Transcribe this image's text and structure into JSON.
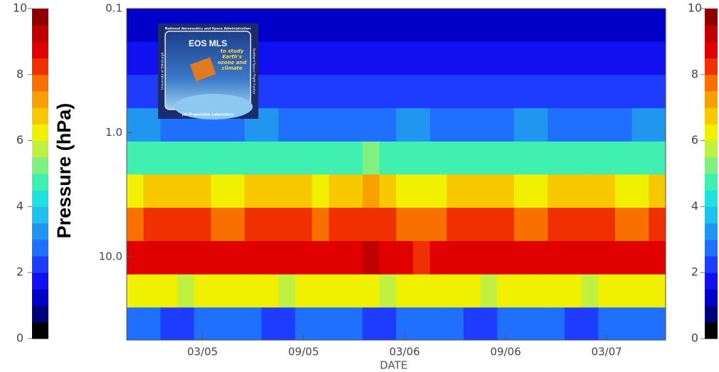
{
  "chart_data": {
    "type": "heatmap",
    "ylabel": "Pressure (hPa)",
    "xlabel": "DATE",
    "yscale": "log",
    "ylim": [
      0.1,
      47
    ],
    "yticks": [
      0.1,
      {
        "value": 1,
        "label": "1.0"
      },
      {
        "value": 10,
        "label": "10.0"
      }
    ],
    "categories": [
      null,
      null,
      null,
      null,
      "03/05",
      null,
      null,
      null,
      null,
      null,
      "09/05",
      null,
      null,
      null,
      null,
      null,
      "03/06",
      null,
      null,
      null,
      null,
      null,
      "09/06",
      null,
      null,
      null,
      null,
      null,
      "03/07",
      null,
      null,
      null
    ],
    "y_edges": [
      0.1,
      0.185,
      0.343,
      0.636,
      1.18,
      2.18,
      4.04,
      7.49,
      13.9,
      25.7,
      47
    ],
    "z": [
      [
        1.3,
        1.3,
        1.2,
        1.2,
        1.1,
        1.1,
        1.2,
        1.3,
        1.3,
        1.2,
        1.2,
        1.1,
        1.0,
        1.0,
        1.1,
        1.2,
        1.3,
        1.3,
        1.2,
        1.2,
        1.1,
        1.1,
        1.2,
        1.3,
        1.3,
        1.2,
        1.2,
        1.1,
        1.1,
        1.2,
        1.3,
        1.3
      ],
      [
        1.8,
        1.8,
        1.7,
        1.7,
        1.6,
        1.6,
        1.7,
        1.8,
        1.8,
        1.7,
        1.7,
        1.6,
        1.5,
        1.5,
        1.6,
        1.7,
        1.8,
        1.8,
        1.7,
        1.7,
        1.6,
        1.6,
        1.7,
        1.8,
        1.8,
        1.7,
        1.7,
        1.6,
        1.6,
        1.7,
        1.8,
        1.8
      ],
      [
        2.3,
        2.3,
        2.2,
        2.2,
        2.1,
        2.1,
        2.2,
        2.3,
        2.3,
        2.2,
        2.2,
        2.1,
        2.0,
        2.0,
        2.1,
        2.2,
        2.3,
        2.3,
        2.2,
        2.2,
        2.1,
        2.1,
        2.2,
        2.3,
        2.3,
        2.2,
        2.2,
        2.1,
        2.1,
        2.2,
        2.3,
        2.3
      ],
      [
        3.0,
        3.0,
        2.9,
        2.9,
        2.8,
        2.8,
        2.9,
        3.0,
        3.0,
        2.9,
        2.9,
        2.8,
        2.7,
        2.7,
        2.8,
        2.9,
        3.0,
        3.0,
        2.9,
        2.9,
        2.8,
        2.8,
        2.9,
        3.0,
        3.0,
        2.9,
        2.9,
        2.8,
        2.8,
        2.9,
        3.0,
        3.0
      ],
      [
        4.6,
        4.7,
        4.8,
        4.8,
        4.7,
        4.6,
        4.6,
        4.8,
        4.9,
        4.8,
        4.7,
        4.6,
        4.7,
        4.9,
        5.0,
        4.8,
        4.6,
        4.5,
        4.6,
        4.7,
        4.8,
        4.8,
        4.7,
        4.6,
        4.6,
        4.8,
        4.9,
        4.8,
        4.7,
        4.6,
        4.6,
        4.7
      ],
      [
        6.4,
        6.5,
        6.6,
        6.6,
        6.5,
        6.4,
        6.4,
        6.6,
        6.8,
        6.7,
        6.5,
        6.4,
        6.6,
        6.8,
        7.0,
        6.7,
        6.4,
        6.3,
        6.4,
        6.5,
        6.6,
        6.6,
        6.5,
        6.4,
        6.4,
        6.6,
        6.8,
        6.7,
        6.5,
        6.4,
        6.4,
        6.5
      ],
      [
        7.9,
        8.0,
        8.1,
        8.2,
        8.1,
        7.9,
        7.9,
        8.1,
        8.3,
        8.2,
        8.0,
        7.9,
        8.1,
        8.3,
        8.4,
        8.2,
        7.9,
        7.8,
        7.9,
        8.0,
        8.2,
        8.2,
        8.1,
        7.9,
        7.9,
        8.1,
        8.3,
        8.2,
        8.0,
        7.9,
        7.9,
        8.0
      ],
      [
        8.5,
        8.6,
        8.7,
        8.8,
        8.7,
        8.5,
        8.5,
        8.7,
        8.9,
        8.8,
        8.6,
        8.5,
        8.7,
        8.9,
        9.0,
        8.8,
        8.5,
        8.4,
        8.5,
        8.6,
        8.8,
        8.8,
        8.7,
        8.5,
        8.5,
        8.7,
        8.9,
        8.8,
        8.6,
        8.5,
        8.5,
        8.6
      ],
      [
        6.2,
        6.1,
        6.0,
        5.9,
        6.0,
        6.1,
        6.2,
        6.1,
        6.0,
        5.9,
        6.0,
        6.1,
        6.2,
        6.1,
        6.0,
        5.9,
        6.0,
        6.1,
        6.2,
        6.1,
        6.0,
        5.9,
        6.0,
        6.1,
        6.2,
        6.1,
        6.0,
        5.9,
        6.0,
        6.1,
        6.2,
        6.1
      ],
      [
        2.6,
        2.5,
        2.4,
        2.4,
        2.5,
        2.6,
        2.6,
        2.5,
        2.4,
        2.4,
        2.5,
        2.6,
        2.6,
        2.5,
        2.4,
        2.4,
        2.5,
        2.6,
        2.6,
        2.5,
        2.4,
        2.4,
        2.5,
        2.6,
        2.6,
        2.5,
        2.4,
        2.4,
        2.5,
        2.6,
        2.6,
        2.5
      ]
    ],
    "colorbar": {
      "lim": [
        0,
        10
      ],
      "ticks": [
        0,
        2,
        4,
        6,
        8,
        10
      ],
      "colors": [
        "#000000",
        "#00007a",
        "#0000c8",
        "#1010f0",
        "#1e3cff",
        "#2070ff",
        "#2096f0",
        "#20c0f0",
        "#20e0e0",
        "#40f0b0",
        "#80f080",
        "#c0f040",
        "#f0f000",
        "#f8c800",
        "#f8a000",
        "#f87000",
        "#f03000",
        "#e00000",
        "#c00000",
        "#900000"
      ]
    }
  },
  "logo": {
    "agency": "National Aeronautics and Space Administration",
    "title": "EOS MLS",
    "tagline": "to study Earth's ozone and climate",
    "left": "University of Edinburgh",
    "right": "Goddard Space Flight Center",
    "bottom": "Jet Propulsion Laboratory"
  }
}
